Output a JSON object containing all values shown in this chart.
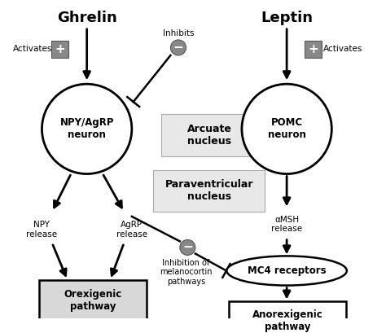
{
  "background_color": "#ffffff",
  "ghrelin_label": "Ghrelin",
  "leptin_label": "Leptin",
  "activates_left": "Activates",
  "activates_right": "Activates",
  "inhibits_label": "Inhibits",
  "npy_agrp_label": "NPY/AgRP\nneuron",
  "pomc_label": "POMC\nneuron",
  "arcuate_label": "Arcuate\nnucleus",
  "paraventricular_label": "Paraventricular\nnucleus",
  "npy_release": "NPY\nrelease",
  "agrp_release": "AgRP\nrelease",
  "amsh_release": "αMSH\nrelease",
  "mc4_label": "MC4 receptors",
  "inhibition_label": "Inhibition of\nmelanocortin\npathways",
  "orexigenic_label": "Orexigenic\npathway",
  "anorexigenic_label": "Anorexigenic\npathway",
  "gray_fill": "#d8d8d8",
  "light_gray": "#e8e8e8"
}
